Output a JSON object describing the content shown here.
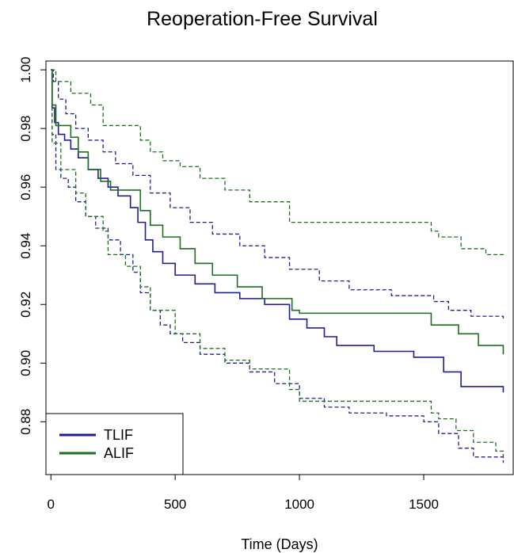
{
  "chart_data": {
    "type": "line",
    "title": "Reoperation-Free Survival",
    "xlabel": "Time (Days)",
    "ylabel": "",
    "xlim": [
      -20,
      1860
    ],
    "ylim": [
      0.862,
      1.003
    ],
    "xticks": [
      0,
      500,
      1000,
      1500
    ],
    "yticks": [
      0.88,
      0.9,
      0.92,
      0.94,
      0.96,
      0.98,
      1.0
    ],
    "ytick_labels": [
      "0.88",
      "0.90",
      "0.92",
      "0.94",
      "0.96",
      "0.98",
      "1.00"
    ],
    "grid": false,
    "legend_position": "bottom-left",
    "series": [
      {
        "name": "TLIF",
        "color": "#1f1f8f",
        "style": "solid",
        "step": true,
        "x": [
          0,
          5,
          15,
          30,
          55,
          80,
          110,
          150,
          190,
          230,
          270,
          320,
          350,
          380,
          410,
          450,
          500,
          580,
          660,
          760,
          860,
          960,
          1030,
          1100,
          1150,
          1300,
          1460,
          1580,
          1650,
          1820
        ],
        "y": [
          1.0,
          0.987,
          0.982,
          0.978,
          0.976,
          0.973,
          0.97,
          0.966,
          0.963,
          0.96,
          0.957,
          0.953,
          0.948,
          0.942,
          0.938,
          0.934,
          0.93,
          0.927,
          0.924,
          0.922,
          0.92,
          0.915,
          0.912,
          0.909,
          0.906,
          0.904,
          0.902,
          0.897,
          0.892,
          0.89
        ]
      },
      {
        "name": "",
        "color": "#1f1f8f",
        "style": "dashed",
        "step": true,
        "x": [
          0,
          10,
          30,
          60,
          100,
          150,
          210,
          260,
          330,
          400,
          480,
          560,
          650,
          760,
          860,
          960,
          1080,
          1200,
          1370,
          1540,
          1600,
          1690,
          1820
        ],
        "y": [
          1.0,
          0.996,
          0.99,
          0.985,
          0.98,
          0.976,
          0.972,
          0.968,
          0.964,
          0.958,
          0.953,
          0.948,
          0.944,
          0.94,
          0.936,
          0.932,
          0.928,
          0.925,
          0.923,
          0.921,
          0.918,
          0.916,
          0.915
        ]
      },
      {
        "name": "",
        "color": "#1f1f8f",
        "style": "dashed",
        "step": true,
        "x": [
          0,
          5,
          20,
          40,
          70,
          100,
          140,
          180,
          230,
          280,
          330,
          360,
          400,
          440,
          480,
          530,
          600,
          700,
          800,
          900,
          1000,
          1100,
          1200,
          1350,
          1500,
          1560,
          1640,
          1700,
          1820
        ],
        "y": [
          1.0,
          0.978,
          0.966,
          0.963,
          0.96,
          0.955,
          0.95,
          0.946,
          0.942,
          0.937,
          0.931,
          0.924,
          0.918,
          0.913,
          0.91,
          0.907,
          0.903,
          0.9,
          0.897,
          0.893,
          0.888,
          0.885,
          0.883,
          0.882,
          0.88,
          0.876,
          0.871,
          0.868,
          0.866
        ]
      },
      {
        "name": "ALIF",
        "color": "#1e6e1e",
        "style": "solid",
        "step": true,
        "x": [
          0,
          5,
          20,
          80,
          110,
          150,
          200,
          240,
          360,
          400,
          450,
          520,
          580,
          650,
          750,
          850,
          970,
          1000,
          1530,
          1640,
          1720,
          1820
        ],
        "y": [
          1.0,
          0.988,
          0.981,
          0.977,
          0.972,
          0.966,
          0.962,
          0.959,
          0.952,
          0.947,
          0.943,
          0.939,
          0.934,
          0.93,
          0.926,
          0.922,
          0.918,
          0.917,
          0.913,
          0.91,
          0.906,
          0.903
        ]
      },
      {
        "name": "",
        "color": "#1e6e1e",
        "style": "dashed",
        "step": true,
        "x": [
          0,
          20,
          80,
          160,
          210,
          360,
          400,
          450,
          520,
          600,
          700,
          800,
          960,
          1530,
          1560,
          1650,
          1750,
          1820
        ],
        "y": [
          1.0,
          0.996,
          0.992,
          0.988,
          0.981,
          0.976,
          0.972,
          0.969,
          0.967,
          0.963,
          0.959,
          0.955,
          0.948,
          0.945,
          0.943,
          0.939,
          0.937,
          0.936
        ]
      },
      {
        "name": "",
        "color": "#1e6e1e",
        "style": "dashed",
        "step": true,
        "x": [
          0,
          5,
          40,
          100,
          140,
          210,
          230,
          300,
          360,
          400,
          500,
          600,
          700,
          800,
          960,
          1000,
          1530,
          1560,
          1630,
          1700,
          1790,
          1820
        ],
        "y": [
          1.0,
          0.975,
          0.966,
          0.958,
          0.95,
          0.945,
          0.937,
          0.933,
          0.926,
          0.918,
          0.91,
          0.905,
          0.901,
          0.898,
          0.891,
          0.887,
          0.883,
          0.881,
          0.877,
          0.873,
          0.87,
          0.868
        ]
      }
    ]
  }
}
